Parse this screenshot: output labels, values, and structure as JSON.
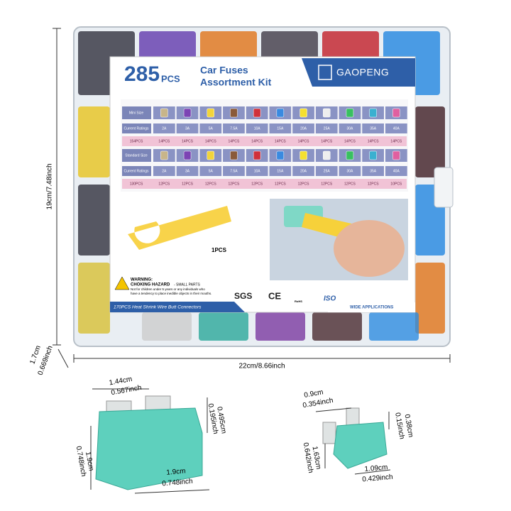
{
  "dimensions": {
    "height": "19cm/7.48inch",
    "width": "22cm/8.66inch",
    "depth": [
      "1.7cm",
      "0.669inch"
    ]
  },
  "header": {
    "count": "285",
    "unit": "PCS",
    "title": [
      "Car Fuses",
      "Assortment Kit"
    ],
    "brand": "GAOPENG"
  },
  "table": {
    "rows": [
      {
        "label": "Mini Size",
        "ratings_label": "Current Ratings",
        "ratings": [
          "2A",
          "3A",
          "5A",
          "7.5A",
          "10A",
          "15A",
          "20A",
          "25A",
          "30A",
          "35A",
          "40A"
        ],
        "total": "154PCS",
        "counts": [
          "14PCS",
          "14PCS",
          "14PCS",
          "14PCS",
          "14PCS",
          "14PCS",
          "14PCS",
          "14PCS",
          "14PCS",
          "14PCS",
          "14PCS"
        ]
      },
      {
        "label": "Standard Size",
        "ratings_label": "Current Ratings",
        "ratings": [
          "2A",
          "3A",
          "5A",
          "7.5A",
          "10A",
          "15A",
          "20A",
          "25A",
          "30A",
          "35A",
          "40A"
        ],
        "total": "130PCS",
        "counts": [
          "12PCS",
          "12PCS",
          "12PCS",
          "12PCS",
          "12PCS",
          "12PCS",
          "12PCS",
          "12PCS",
          "12PCS",
          "12PCS",
          "10PCS"
        ]
      }
    ]
  },
  "puller": "1PCS",
  "warning": {
    "title": "WARNING:",
    "hazard": "CHOKING HAZARD",
    "hazard_note": "- SMALL PARTS",
    "lines": [
      "Not for children under 5 years or any individuals who",
      "have a tendency to place inedible objects in their mouths."
    ]
  },
  "banner": "170PCS Heat Shrink Wire Butt Connectors",
  "certs": [
    "SGS",
    "CE",
    "RoHS",
    "ISO"
  ],
  "applications": "WIDE APPLICATIONS",
  "standard_fuse": {
    "width": [
      "1.44cm",
      "0.567inch"
    ],
    "blade": [
      "0.495cm",
      "0.195inch"
    ],
    "height": [
      "1.9cm",
      "0.748inch"
    ],
    "body": [
      "1.9cm",
      "0.748inch"
    ]
  },
  "mini_fuse": {
    "width": [
      "0.9cm",
      "0.354inch"
    ],
    "blade": [
      "0.38cm",
      "0.15inch"
    ],
    "height": [
      "1.63cm",
      "0.642inch"
    ],
    "body": [
      "1.09cm",
      "0.429inch"
    ]
  }
}
